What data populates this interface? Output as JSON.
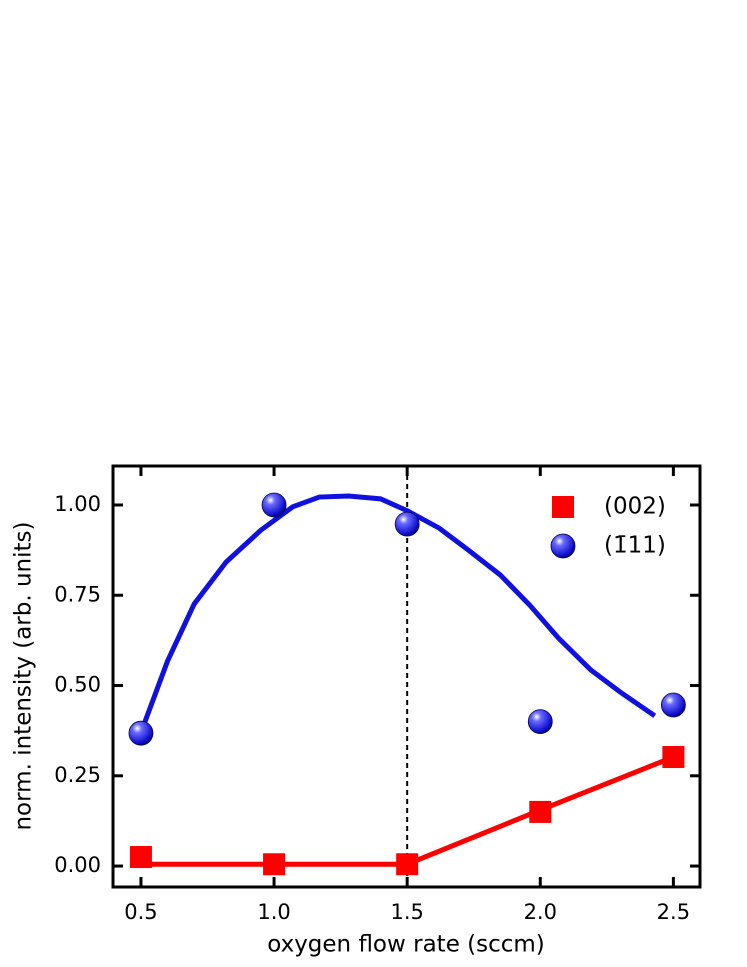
{
  "chart_data": {
    "type": "scatter",
    "xlabel": "oxygen flow rate (sccm)",
    "ylabel": "norm. intensity (arb. units)",
    "xlim": [
      0.395,
      2.6
    ],
    "ylim": [
      -0.058,
      1.108
    ],
    "xticks": [
      {
        "value": 0.5,
        "label": "0.5"
      },
      {
        "value": 1.0,
        "label": "1.0"
      },
      {
        "value": 1.5,
        "label": "1.5"
      },
      {
        "value": 2.0,
        "label": "2.0"
      },
      {
        "value": 2.5,
        "label": "2.5"
      }
    ],
    "yticks": [
      {
        "value": 0,
        "label": "0.00"
      },
      {
        "value": 0.25,
        "label": "0.25"
      },
      {
        "value": 0.5,
        "label": "0.50"
      },
      {
        "value": 0.75,
        "label": "0.75"
      },
      {
        "value": 1.0,
        "label": "1.00"
      }
    ],
    "vline": 1.5,
    "legend": "upper right",
    "series": [
      {
        "name": "(002)",
        "color": "#ff0000",
        "marker": "square",
        "x": [
          0.5,
          1.0,
          1.5,
          2.0,
          2.5
        ],
        "values": [
          0.025,
          0.005,
          0.005,
          0.15,
          0.302
        ]
      },
      {
        "name": "(1̄11)",
        "color": "#1010e0",
        "marker": "sphere",
        "x": [
          0.5,
          1.0,
          1.5,
          2.0,
          2.5
        ],
        "values": [
          0.368,
          1.0,
          0.947,
          0.4,
          0.446
        ]
      }
    ],
    "fits": [
      {
        "color": "#ff0000",
        "x": [
          0.5,
          1.5,
          2.0,
          2.5
        ],
        "values": [
          0.005,
          0.005,
          0.155,
          0.302
        ]
      },
      {
        "color": "#1010e0",
        "x": [
          0.5,
          0.6,
          0.7,
          0.82,
          0.95,
          1.07,
          1.17,
          1.28,
          1.4,
          1.5,
          1.62,
          1.73,
          1.85,
          1.96,
          2.07,
          2.19,
          2.3,
          2.43
        ],
        "values": [
          0.37,
          0.568,
          0.726,
          0.842,
          0.93,
          0.995,
          1.022,
          1.025,
          1.017,
          0.984,
          0.936,
          0.875,
          0.806,
          0.723,
          0.63,
          0.543,
          0.482,
          0.416
        ]
      }
    ]
  }
}
